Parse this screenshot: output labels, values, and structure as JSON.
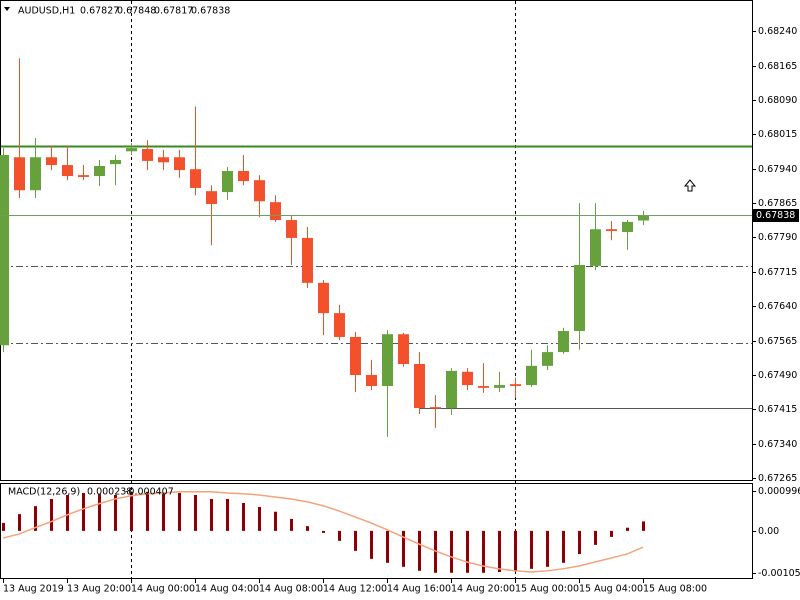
{
  "chart_data": [
    {
      "type": "candlestick",
      "symbol": "AUDUSD,H1",
      "categories": [
        "13 Aug 2019",
        null,
        null,
        null,
        "13 Aug 20:00",
        null,
        null,
        null,
        "14 Aug 00:00",
        null,
        null,
        null,
        "14 Aug 04:00",
        null,
        null,
        null,
        "14 Aug 08:00",
        null,
        null,
        null,
        "14 Aug 12:00",
        null,
        null,
        null,
        "14 Aug 16:00",
        null,
        null,
        null,
        "14 Aug 20:00",
        null,
        null,
        null,
        "15 Aug 00:00",
        null,
        null,
        null,
        "15 Aug 04:00",
        null,
        null,
        null,
        "15 Aug 08:00"
      ],
      "open": [
        0.67555,
        0.67965,
        0.67893,
        0.67965,
        0.67948,
        0.67926,
        0.67924,
        0.6795,
        0.67978,
        0.67983,
        0.67965,
        0.67965,
        0.67939,
        0.67891,
        0.67889,
        0.67935,
        0.67915,
        0.67867,
        0.67828,
        0.67789,
        0.67691,
        0.67625,
        0.67573,
        0.6749,
        0.67466,
        0.67579,
        0.67514,
        0.6742,
        0.67418,
        0.67497,
        0.67466,
        0.67462,
        0.6747,
        0.67468,
        0.6751,
        0.6754,
        0.67586,
        0.67728,
        0.67808,
        0.67802,
        0.67827
      ],
      "high": [
        0.67985,
        0.68181,
        0.68007,
        0.67991,
        0.67991,
        0.67948,
        0.67959,
        0.6797,
        0.67996,
        0.68002,
        0.67981,
        0.67981,
        0.68076,
        0.67904,
        0.67944,
        0.6797,
        0.67926,
        0.67882,
        0.67839,
        0.67813,
        0.67697,
        0.67643,
        0.67584,
        0.67523,
        0.67588,
        0.67582,
        0.6754,
        0.67446,
        0.67505,
        0.67505,
        0.67516,
        0.67497,
        0.67484,
        0.67545,
        0.67555,
        0.67593,
        0.67865,
        0.67865,
        0.67826,
        0.67828,
        0.67848
      ],
      "low": [
        0.6754,
        0.67876,
        0.67876,
        0.67937,
        0.67915,
        0.67915,
        0.67902,
        0.67904,
        0.6797,
        0.67937,
        0.67937,
        0.6792,
        0.67882,
        0.67773,
        0.67872,
        0.67904,
        0.67834,
        0.67824,
        0.6773,
        0.6768,
        0.67577,
        0.67566,
        0.67453,
        0.67457,
        0.67355,
        0.67508,
        0.67405,
        0.67375,
        0.67403,
        0.67457,
        0.67451,
        0.67453,
        0.6744,
        0.67464,
        0.67501,
        0.67536,
        0.67545,
        0.67719,
        0.67784,
        0.67763,
        0.67817
      ],
      "close": [
        0.6797,
        0.67893,
        0.67965,
        0.67948,
        0.67924,
        0.67922,
        0.67946,
        0.67959,
        0.67985,
        0.67957,
        0.67954,
        0.67937,
        0.67898,
        0.67863,
        0.67935,
        0.67913,
        0.67869,
        0.67828,
        0.67789,
        0.67691,
        0.67625,
        0.67573,
        0.6749,
        0.67466,
        0.67579,
        0.67514,
        0.67418,
        0.67418,
        0.67499,
        0.67468,
        0.67462,
        0.67468,
        0.67466,
        0.6751,
        0.6754,
        0.67586,
        0.6773,
        0.67808,
        0.67804,
        0.67824,
        0.67838
      ],
      "up_color": "#66a13c",
      "down_color": "#f2512b",
      "ylim": [
        0.67261,
        0.68308
      ],
      "yticks": [
        {
          "value": 0.6824,
          "label": "0.68240"
        },
        0.68165,
        {
          "value": 0.6809,
          "label": "0.68090"
        },
        0.68015,
        {
          "value": 0.6794,
          "label": "0.67940"
        },
        0.67865,
        {
          "value": 0.6779,
          "label": "0.67790"
        },
        0.67715,
        {
          "value": 0.6764,
          "label": "0.67640"
        },
        0.67565,
        {
          "value": 0.6749,
          "label": "0.67490"
        },
        0.67415,
        {
          "value": 0.6734,
          "label": "0.67340"
        },
        0.67265
      ],
      "hlines": [
        {
          "value": 0.67989,
          "color": "#3a8a22",
          "width": 2
        },
        {
          "value": 0.67728,
          "color": "#555555",
          "width": 1,
          "dash": "7 3 2 3"
        },
        {
          "value": 0.6756,
          "color": "#555555",
          "width": 1,
          "dash": "7 3 2 3"
        },
        {
          "value": 0.67418,
          "color": "#555555",
          "width": 1,
          "start": 26
        }
      ],
      "bid_color": "#6aa060"
    },
    {
      "type": "macd",
      "title": "MACD(12,26,9)",
      "histogram": {
        "color": "#8b0000",
        "values": [
          0.0002,
          0.00042,
          0.00062,
          0.0008,
          0.0009,
          0.00095,
          0.00092,
          0.0009,
          0.00098,
          0.00098,
          0.00095,
          0.00095,
          0.0009,
          0.0008,
          0.0008,
          0.0007,
          0.0006,
          0.00048,
          0.0003,
          0.00012,
          -5e-05,
          -0.00025,
          -0.0005,
          -0.0007,
          -0.0008,
          -0.0009,
          -0.001,
          -0.00105,
          -0.00105,
          -0.00105,
          -0.00105,
          -0.00103,
          -0.001,
          -0.00095,
          -0.0009,
          -0.0008,
          -0.00058,
          -0.00035,
          -0.00015,
          8e-05,
          0.000238
        ]
      },
      "signal": {
        "color": "#f4a27a",
        "values": [
          -0.00018,
          -8e-05,
          8e-05,
          0.00023,
          0.0004,
          0.00055,
          0.00068,
          0.0008,
          0.00088,
          0.00093,
          0.00095,
          0.00098,
          0.00098,
          0.00098,
          0.00095,
          0.00093,
          0.0009,
          0.00085,
          0.0008,
          0.00073,
          0.00063,
          0.0005,
          0.00035,
          0.0002,
          3e-05,
          -0.00015,
          -0.00033,
          -0.0005,
          -0.00065,
          -0.00078,
          -0.00088,
          -0.00095,
          -0.001,
          -0.00103,
          -0.001,
          -0.00095,
          -0.00088,
          -0.00078,
          -0.00068,
          -0.00058,
          -0.000407
        ]
      },
      "ylim": [
        -0.00118,
        0.0012
      ],
      "yticks": [
        0.000996,
        {
          "value": 0,
          "label": "0.00"
        },
        -0.001056
      ]
    }
  ]
}
